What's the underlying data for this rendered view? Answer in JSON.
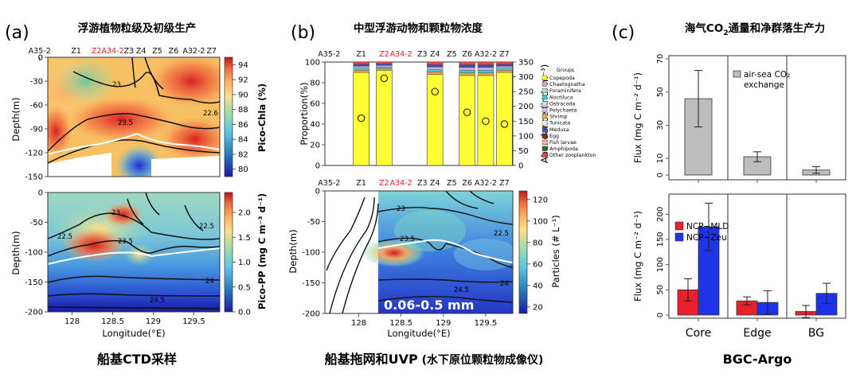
{
  "panels": {
    "a": {
      "letter": "(a)",
      "title": "浮游植物粒级及初级生产",
      "footer": "船基CTD采样"
    },
    "b": {
      "letter": "(b)",
      "title": "中型浮游动物和颗粒物浓度",
      "footer_main": "船基拖网和UVP",
      "footer_sub": " (水下原位颗粒物成像仪)"
    },
    "c": {
      "letter": "(c)",
      "title_pre": "海气CO",
      "title_sub": "2",
      "title_post": "通量和净群落生产力",
      "footer": "BGC-Argo"
    }
  },
  "colors": {
    "station_black": "#111111",
    "station_red": "#d62728",
    "bar_gray": "#bdbdbd",
    "ncp_mld": "#e8202a",
    "ncp_zeu": "#1f33e6",
    "copepoda": "#ffff33",
    "white_line": "#ffffff"
  },
  "stations_a": [
    {
      "label": "A35-2",
      "lon": 127.6,
      "red": false
    },
    {
      "label": "Z1",
      "lon": 128.05,
      "red": false
    },
    {
      "label": "Z2",
      "lon": 128.3,
      "red": true
    },
    {
      "label": "A34-2",
      "lon": 128.5,
      "red": true
    },
    {
      "label": "Z3",
      "lon": 128.7,
      "red": false
    },
    {
      "label": "Z4",
      "lon": 128.85,
      "red": false
    },
    {
      "label": "Z5",
      "lon": 129.05,
      "red": false
    },
    {
      "label": "Z6",
      "lon": 129.25,
      "red": false
    },
    {
      "label": "A32-2",
      "lon": 129.5,
      "red": false
    },
    {
      "label": "Z7",
      "lon": 129.72,
      "red": false
    }
  ],
  "stations_b": [
    {
      "label": "A35-2",
      "lon": 127.65,
      "red": false
    },
    {
      "label": "Z1",
      "lon": 128.03,
      "red": false
    },
    {
      "label": "Z2",
      "lon": 128.3,
      "red": true
    },
    {
      "label": "A34-2",
      "lon": 128.5,
      "red": true
    },
    {
      "label": "Z3",
      "lon": 128.75,
      "red": false
    },
    {
      "label": "Z4",
      "lon": 128.9,
      "red": false
    },
    {
      "label": "Z5",
      "lon": 129.1,
      "red": false
    },
    {
      "label": "Z6",
      "lon": 129.28,
      "red": false
    },
    {
      "label": "A32-2",
      "lon": 129.5,
      "red": false
    },
    {
      "label": "Z7",
      "lon": 129.72,
      "red": false
    }
  ],
  "section_a_top": {
    "ylabel": "Depth(m)",
    "colorbar_label": "Pico-Chla (%)",
    "colorbar_ticks": [
      80,
      82,
      84,
      86,
      88,
      90,
      92,
      94
    ],
    "y_ticks": [
      0,
      -30,
      -60,
      -90,
      -120,
      -150
    ],
    "contour_labels": [
      "23",
      "23.5",
      "22.6"
    ]
  },
  "section_a_bottom": {
    "ylabel": "Depth(m)",
    "xlabel": "Longitude(°E)",
    "colorbar_label": "Pico-PP (mg C m⁻³ d⁻¹)",
    "colorbar_ticks": [
      0.0,
      0.5,
      1.0,
      1.5,
      2.0
    ],
    "y_ticks": [
      0,
      -50,
      -100,
      -150,
      -200
    ],
    "x_ticks": [
      128,
      128.5,
      129,
      129.5
    ],
    "contour_labels": [
      "23",
      "22.5",
      "23.5",
      "22.5",
      "24",
      "24.5"
    ]
  },
  "zoo_chart": {
    "y_left_label": "Proportion(%)",
    "y_right_label": "Abundance (ind. m⁻³)",
    "y_left_ticks": [
      0,
      20,
      40,
      60,
      80,
      100
    ],
    "y_right_ticks": [
      0,
      50,
      100,
      150,
      200,
      250,
      300,
      350
    ],
    "legend_title": "Groups",
    "groups": [
      "Copepoda",
      "Chaetognatha",
      "Foraminifera",
      "Noctiluca",
      "Ostracoda",
      "Polychaeta",
      "Shrimp",
      "Tunicata",
      "Medusa",
      "Egg",
      "Fish larvae",
      "Amphipoda",
      "Other zooplankton"
    ],
    "group_colors": [
      "#ffff33",
      "#d9a8d0",
      "#a6e3c8",
      "#3ec9d6",
      "#bfe8e6",
      "#d8c3e6",
      "#f2a03d",
      "#f7f7f7",
      "#3b50b5",
      "#8b1f1f",
      "#f7b2b2",
      "#2e6b3a",
      "#e84a3a"
    ]
  },
  "uvp_section": {
    "ylabel": "Depth(m)",
    "xlabel": "Longitude(°E)",
    "colorbar_label": "Particles (# L⁻¹)",
    "colorbar_ticks": [
      20,
      40,
      60,
      80,
      100,
      120
    ],
    "y_ticks": [
      0,
      -50,
      -100,
      -150,
      -200
    ],
    "x_ticks": [
      128,
      128.5,
      129,
      129.5
    ],
    "size_label": "0.06-0.5 mm",
    "contour_labels": [
      "23",
      "23.5",
      "22.5",
      "24.5",
      "24"
    ]
  },
  "chart_data": [
    {
      "type": "bar",
      "title": "",
      "categories": [
        "Z1",
        "Z2",
        "Z4",
        "Z6",
        "A32-2",
        "Z7"
      ],
      "x": [
        128.03,
        128.3,
        128.9,
        129.28,
        129.5,
        129.72
      ],
      "series": [
        {
          "name": "Copepoda",
          "values": [
            90,
            92,
            88,
            87,
            87,
            90
          ]
        }
      ],
      "abundance": [
        160,
        295,
        250,
        180,
        150,
        140
      ],
      "ylabel": "Proportion(%)",
      "y2label": "Abundance (ind. m⁻³)",
      "ylim": [
        0,
        100
      ],
      "y2lim": [
        0,
        350
      ]
    },
    {
      "type": "bar",
      "title": "",
      "categories": [
        "Core",
        "Edge",
        "BG"
      ],
      "series": [
        {
          "name": "air-sea CO₂ exchange",
          "values": [
            46,
            11,
            3
          ],
          "err": [
            17,
            3,
            2
          ]
        }
      ],
      "ylabel": "Flux (mg C m⁻² d⁻¹)",
      "ylim": [
        0,
        70
      ],
      "yticks": [
        0,
        10,
        30,
        50,
        70
      ],
      "legend_line1": "air-sea CO₂",
      "legend_line2": "exchange",
      "legend_position": "top-right"
    },
    {
      "type": "bar",
      "title": "",
      "categories": [
        "Core",
        "Edge",
        "BG"
      ],
      "series": [
        {
          "name": "NCP−MLD",
          "values": [
            50,
            28,
            7
          ],
          "err": [
            22,
            8,
            12
          ]
        },
        {
          "name": "NCP−Zeu",
          "values": [
            175,
            25,
            43
          ],
          "err": [
            47,
            23,
            20
          ]
        }
      ],
      "ylabel": "Flux (mg C m⁻² d⁻¹)",
      "ylim": [
        0,
        240
      ],
      "yticks": [
        0,
        50,
        100,
        150,
        200
      ],
      "legend_position": "top-left"
    }
  ]
}
